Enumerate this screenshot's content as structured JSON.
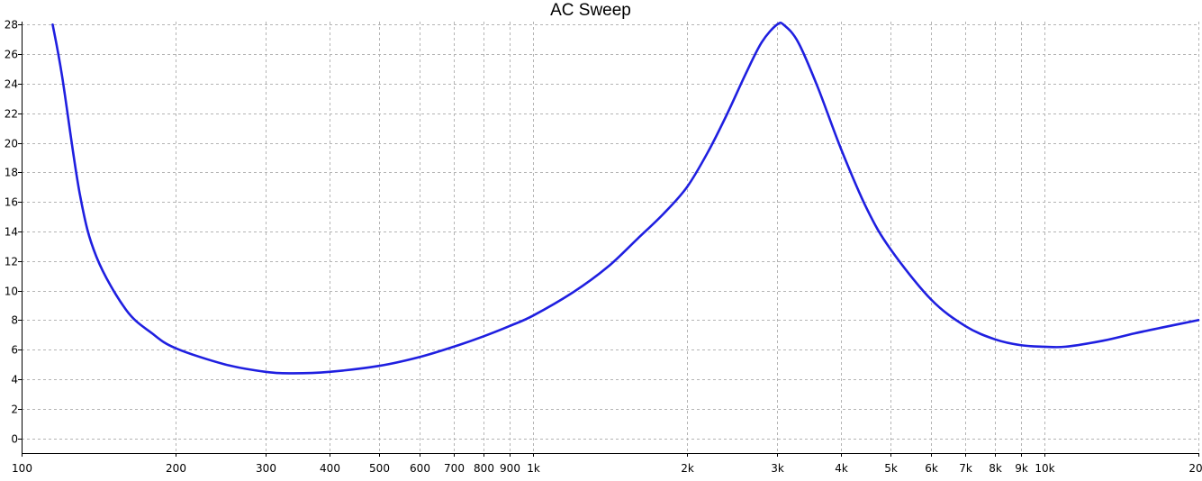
{
  "chart_data": {
    "type": "line",
    "title": "AC Sweep",
    "xlabel": "",
    "ylabel": "",
    "x_scale": "log",
    "xlim": [
      100,
      20000
    ],
    "ylim": [
      -1,
      28.2
    ],
    "grid": true,
    "legend": "none",
    "line_color": "#1f1fe0",
    "grid_color": "#b4b4b4",
    "x_ticks": [
      {
        "value": 100,
        "label": "100"
      },
      {
        "value": 200,
        "label": "200"
      },
      {
        "value": 300,
        "label": "300"
      },
      {
        "value": 400,
        "label": "400"
      },
      {
        "value": 500,
        "label": "500"
      },
      {
        "value": 600,
        "label": "600"
      },
      {
        "value": 700,
        "label": "700"
      },
      {
        "value": 800,
        "label": "800"
      },
      {
        "value": 900,
        "label": "900"
      },
      {
        "value": 1000,
        "label": "1k"
      },
      {
        "value": 2000,
        "label": "2k"
      },
      {
        "value": 3000,
        "label": "3k"
      },
      {
        "value": 4000,
        "label": "4k"
      },
      {
        "value": 5000,
        "label": "5k"
      },
      {
        "value": 6000,
        "label": "6k"
      },
      {
        "value": 7000,
        "label": "7k"
      },
      {
        "value": 8000,
        "label": "8k"
      },
      {
        "value": 9000,
        "label": "9k"
      },
      {
        "value": 10000,
        "label": "10k"
      },
      {
        "value": 20000,
        "label": "20k"
      }
    ],
    "y_ticks": [
      {
        "value": 0,
        "label": "0"
      },
      {
        "value": 2,
        "label": "2"
      },
      {
        "value": 4,
        "label": "4"
      },
      {
        "value": 6,
        "label": "6"
      },
      {
        "value": 8,
        "label": "8"
      },
      {
        "value": 10,
        "label": "10"
      },
      {
        "value": 12,
        "label": "12"
      },
      {
        "value": 14,
        "label": "14"
      },
      {
        "value": 16,
        "label": "16"
      },
      {
        "value": 18,
        "label": "18"
      },
      {
        "value": 20,
        "label": "20"
      },
      {
        "value": 22,
        "label": "22"
      },
      {
        "value": 24,
        "label": "24"
      },
      {
        "value": 26,
        "label": "26"
      },
      {
        "value": 28,
        "label": "28"
      }
    ],
    "series": [
      {
        "x": [
          115,
          120,
          130,
          140,
          160,
          180,
          200,
          250,
          300,
          340,
          400,
          500,
          600,
          700,
          800,
          900,
          1000,
          1200,
          1400,
          1600,
          1800,
          2000,
          2200,
          2400,
          2600,
          2800,
          3000,
          3100,
          3300,
          3600,
          4000,
          4500,
          5000,
          6000,
          7000,
          8000,
          9000,
          10000,
          11000,
          13000,
          15000,
          17000,
          20000
        ],
        "values": [
          28.0,
          24.5,
          16.5,
          12.3,
          8.7,
          7.1,
          6.1,
          5.0,
          4.5,
          4.4,
          4.5,
          4.9,
          5.5,
          6.2,
          6.9,
          7.6,
          8.3,
          9.9,
          11.6,
          13.5,
          15.2,
          17.0,
          19.4,
          22.0,
          24.6,
          26.8,
          28.0,
          27.95,
          26.8,
          23.8,
          19.6,
          15.5,
          12.8,
          9.4,
          7.6,
          6.7,
          6.3,
          6.2,
          6.2,
          6.6,
          7.1,
          7.5,
          8.0
        ]
      }
    ]
  }
}
